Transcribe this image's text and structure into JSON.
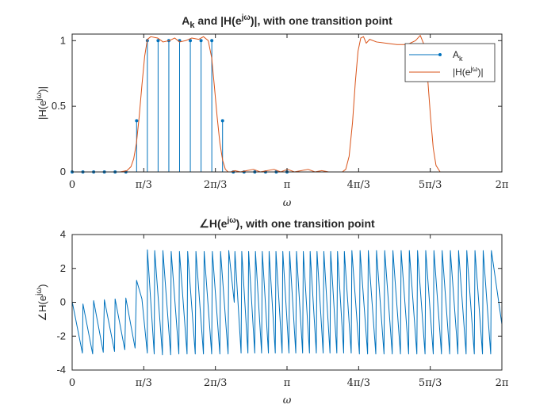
{
  "chart_data": [
    {
      "type": "line",
      "title": "A_k and |H(e^{jω})|, with one transition point",
      "title_parts": {
        "a": "A",
        "a_sub": "k",
        "b": " and |H(e",
        "b_sup": "jω",
        "c": ")|, with one transition point"
      },
      "xlabel": "ω",
      "ylabel": "|H(e^{jω})|",
      "ylabel_parts": {
        "a": "|H(e",
        "sup": "jω",
        "b": ")|"
      },
      "xlim": [
        0,
        6.2832
      ],
      "ylim": [
        0,
        1.05
      ],
      "xticks": [
        {
          "value": 0,
          "label": "0"
        },
        {
          "value": 1.0472,
          "label": "π/3"
        },
        {
          "value": 2.0944,
          "label": "2π/3"
        },
        {
          "value": 3.1416,
          "label": "π"
        },
        {
          "value": 4.1888,
          "label": "4π/3"
        },
        {
          "value": 5.236,
          "label": "5π/3"
        },
        {
          "value": 6.2832,
          "label": "2π"
        }
      ],
      "yticks": [
        {
          "value": 0,
          "label": "0"
        },
        {
          "value": 0.5,
          "label": "0.5"
        },
        {
          "value": 1,
          "label": "1"
        }
      ],
      "legend": {
        "location": "top-right",
        "entries": [
          {
            "text": "A",
            "sub": "k",
            "series": "Ak"
          },
          {
            "text": "|H(e",
            "sup": "jω",
            "text2": ")|",
            "series": "H"
          }
        ]
      },
      "series": [
        {
          "key": "Ak",
          "name": "A_k",
          "style": "stem",
          "color": "#0072BD",
          "x": [
            0,
            0.1571,
            0.3142,
            0.4712,
            0.6283,
            0.7854,
            0.9425,
            1.0996,
            1.2566,
            1.4137,
            1.5708,
            1.7279,
            1.885,
            2.042,
            2.1991,
            2.3562,
            2.5133,
            2.6704,
            2.8274,
            2.9845,
            3.1416
          ],
          "y": [
            0,
            0,
            0,
            0,
            0,
            0,
            0.39,
            1,
            1,
            1,
            1,
            1,
            1,
            1,
            0.39,
            0,
            0,
            0,
            0,
            0,
            0
          ]
        },
        {
          "key": "H",
          "name": "|H(e^{jω})|",
          "style": "line",
          "color": "#D95319",
          "x": [
            0,
            0.4,
            0.7,
            0.8,
            0.86,
            0.9,
            0.94,
            0.98,
            1.02,
            1.06,
            1.1,
            1.15,
            1.25,
            1.33,
            1.42,
            1.5,
            1.57,
            1.66,
            1.75,
            1.85,
            1.92,
            1.99,
            2.04,
            2.08,
            2.12,
            2.16,
            2.2,
            2.24,
            2.28,
            2.32,
            2.38,
            2.46,
            2.55,
            2.65,
            2.75,
            2.85,
            2.95,
            3.05,
            3.15,
            3.25,
            3.35,
            3.45,
            3.55,
            3.65,
            3.75,
            3.85,
            3.95,
            4.0,
            4.05,
            4.1,
            4.14,
            4.18,
            4.22,
            4.26,
            4.3,
            4.35,
            4.45,
            4.6,
            4.75,
            4.9,
            5.02,
            5.09,
            5.16,
            5.2,
            5.24,
            5.28,
            5.32,
            5.38,
            5.45,
            5.55,
            5.7,
            5.9,
            6.1,
            6.2832
          ],
          "y": [
            0,
            0,
            0,
            0.01,
            0.04,
            0.1,
            0.22,
            0.42,
            0.66,
            0.88,
            1.01,
            1.03,
            1.02,
            0.99,
            1.0,
            1.02,
            0.99,
            1.0,
            1.02,
            1.01,
            1.03,
            1.0,
            0.87,
            0.65,
            0.42,
            0.22,
            0.09,
            0.02,
            0,
            0,
            0.01,
            0,
            0.01,
            0.02,
            0,
            0.01,
            0.02,
            0,
            0.02,
            0,
            0.01,
            0.02,
            0,
            0.01,
            0,
            0,
            0,
            0.02,
            0.12,
            0.38,
            0.68,
            0.92,
            1.02,
            1.03,
            0.98,
            1.01,
            0.99,
            0.98,
            0.97,
            0.97,
            1.0,
            1.04,
            0.95,
            0.7,
            0.42,
            0.18,
            0.05,
            0,
            0,
            0,
            0,
            0,
            0,
            0
          ]
        }
      ]
    },
    {
      "type": "line",
      "title": "∠H(e^{jω}), with one transition point",
      "title_parts": {
        "a": "∠H(e",
        "sup": "jω",
        "b": "), with one transition point"
      },
      "xlabel": "ω",
      "ylabel": "∠H(e^{jω})",
      "ylabel_parts": {
        "a": "∠H(e",
        "sup": "jω",
        "b": ")"
      },
      "xlim": [
        0,
        6.2832
      ],
      "ylim": [
        -4,
        4
      ],
      "xticks": [
        {
          "value": 0,
          "label": "0"
        },
        {
          "value": 1.0472,
          "label": "π/3"
        },
        {
          "value": 2.0944,
          "label": "2π/3"
        },
        {
          "value": 3.1416,
          "label": "π"
        },
        {
          "value": 4.1888,
          "label": "4π/3"
        },
        {
          "value": 5.236,
          "label": "5π/3"
        },
        {
          "value": 6.2832,
          "label": "2π"
        }
      ],
      "yticks": [
        {
          "value": -4,
          "label": "-4"
        },
        {
          "value": -2,
          "label": "-2"
        },
        {
          "value": 0,
          "label": "0"
        },
        {
          "value": 2,
          "label": "2"
        },
        {
          "value": 4,
          "label": "4"
        }
      ],
      "series": [
        {
          "key": "phase",
          "name": "phase",
          "style": "line",
          "color": "#0072BD",
          "x": [
            0,
            0.15,
            0.158,
            0.3,
            0.314,
            0.455,
            0.471,
            0.62,
            0.628,
            0.77,
            0.785,
            0.92,
            0.942,
            1.02,
            1.099,
            1.1,
            1.2,
            1.207,
            1.32,
            1.327,
            1.44,
            1.448,
            1.56,
            1.569,
            1.68,
            1.689,
            1.8,
            1.81,
            1.92,
            1.93,
            2.04,
            2.05,
            2.16,
            2.17,
            2.28,
            2.29,
            2.37,
            2.38,
            2.47,
            2.48,
            2.57,
            2.58,
            2.67,
            2.68,
            2.77,
            2.78,
            2.87,
            2.88,
            2.97,
            2.98,
            3.07,
            3.08,
            3.17,
            3.18,
            3.27,
            3.28,
            3.37,
            3.38,
            3.47,
            3.48,
            3.57,
            3.58,
            3.67,
            3.68,
            3.77,
            3.78,
            3.87,
            3.88,
            3.97,
            3.98,
            4.08,
            4.09,
            4.2,
            4.21,
            4.32,
            4.33,
            4.44,
            4.45,
            4.56,
            4.57,
            4.68,
            4.69,
            4.8,
            4.81,
            4.92,
            4.93,
            5.04,
            5.05,
            5.16,
            5.17,
            5.28,
            5.29,
            5.4,
            5.41,
            5.52,
            5.53,
            5.64,
            5.65,
            5.76,
            5.77,
            5.88,
            5.89,
            6.0,
            6.01,
            6.12,
            6.13,
            6.2832
          ],
          "y": [
            0.05,
            -3.0,
            -0.1,
            -3.05,
            0.1,
            -2.95,
            0.15,
            -2.9,
            0.2,
            -2.8,
            0.25,
            -2.7,
            1.3,
            0.2,
            -3.0,
            3.1,
            -3.05,
            3.05,
            -3.1,
            3.05,
            -3.1,
            3.0,
            -3.05,
            3.0,
            -3.05,
            3.0,
            -3.05,
            3.0,
            -3.05,
            3.0,
            -3.05,
            3.0,
            -3.05,
            3.0,
            -3.05,
            3.05,
            0.0,
            3.0,
            -3.0,
            3.0,
            -3.0,
            3.0,
            -3.0,
            3.0,
            -3.0,
            3.0,
            -3.0,
            3.0,
            -3.0,
            3.0,
            -3.0,
            3.0,
            -3.0,
            3.0,
            -3.0,
            3.0,
            -3.0,
            3.0,
            -3.0,
            3.0,
            -3.0,
            3.0,
            -3.0,
            3.0,
            -3.0,
            3.0,
            -3.0,
            3.0,
            -3.0,
            3.0,
            -3.0,
            3.05,
            -3.05,
            3.05,
            -3.05,
            3.05,
            -3.05,
            3.05,
            -3.05,
            3.05,
            -3.05,
            3.05,
            -3.05,
            3.05,
            -3.05,
            3.05,
            -3.05,
            3.05,
            -3.05,
            3.05,
            -3.05,
            3.05,
            -3.05,
            3.05,
            -3.05,
            3.05,
            -3.05,
            3.05,
            -3.05,
            3.05,
            -3.05,
            3.05,
            -3.05,
            3.05,
            -3.05,
            3.05,
            -1.3
          ]
        }
      ]
    }
  ]
}
